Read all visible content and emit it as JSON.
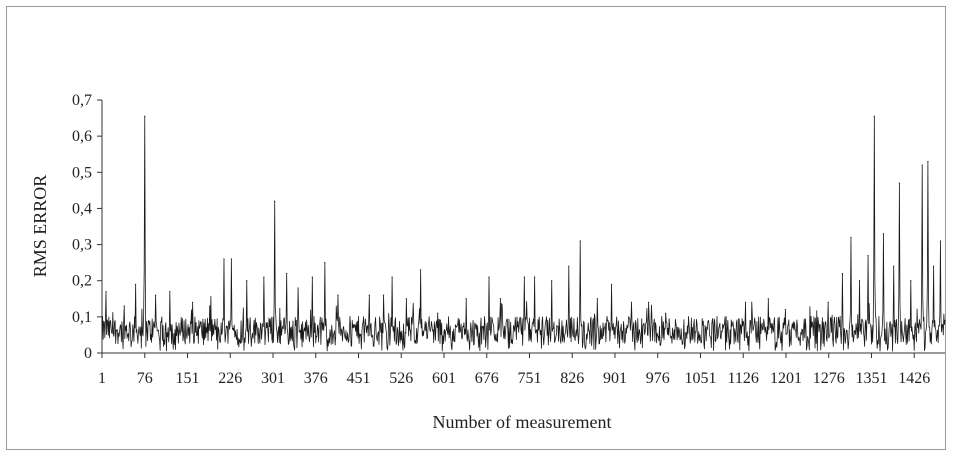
{
  "chart_data": {
    "type": "line",
    "title": "",
    "xlabel": "Number of measurement",
    "ylabel": "RMS ERROR",
    "xlim": [
      1,
      1480
    ],
    "ylim": [
      0,
      0.7
    ],
    "x_ticks": [
      1,
      76,
      151,
      226,
      301,
      376,
      451,
      526,
      601,
      676,
      751,
      826,
      901,
      976,
      1051,
      1126,
      1201,
      1276,
      1351,
      1426
    ],
    "y_ticks": [
      "0",
      "0,1",
      "0,2",
      "0,3",
      "0,4",
      "0,5",
      "0,6",
      "0,7"
    ],
    "y_tick_values": [
      0,
      0.1,
      0.2,
      0.3,
      0.4,
      0.5,
      0.6,
      0.7
    ],
    "grid": false,
    "series_color": "#1a1a1a",
    "baseline_level": 0.07,
    "peaks": [
      {
        "x": 8,
        "y": 0.17
      },
      {
        "x": 40,
        "y": 0.13
      },
      {
        "x": 60,
        "y": 0.19
      },
      {
        "x": 76,
        "y": 0.655
      },
      {
        "x": 95,
        "y": 0.16
      },
      {
        "x": 120,
        "y": 0.17
      },
      {
        "x": 160,
        "y": 0.14
      },
      {
        "x": 190,
        "y": 0.13
      },
      {
        "x": 215,
        "y": 0.26
      },
      {
        "x": 228,
        "y": 0.26
      },
      {
        "x": 255,
        "y": 0.2
      },
      {
        "x": 285,
        "y": 0.21
      },
      {
        "x": 304,
        "y": 0.42
      },
      {
        "x": 325,
        "y": 0.22
      },
      {
        "x": 345,
        "y": 0.18
      },
      {
        "x": 370,
        "y": 0.21
      },
      {
        "x": 392,
        "y": 0.25
      },
      {
        "x": 415,
        "y": 0.16
      },
      {
        "x": 470,
        "y": 0.16
      },
      {
        "x": 495,
        "y": 0.16
      },
      {
        "x": 510,
        "y": 0.21
      },
      {
        "x": 535,
        "y": 0.15
      },
      {
        "x": 560,
        "y": 0.23
      },
      {
        "x": 590,
        "y": 0.11
      },
      {
        "x": 640,
        "y": 0.15
      },
      {
        "x": 680,
        "y": 0.21
      },
      {
        "x": 700,
        "y": 0.15
      },
      {
        "x": 742,
        "y": 0.21
      },
      {
        "x": 760,
        "y": 0.21
      },
      {
        "x": 790,
        "y": 0.2
      },
      {
        "x": 820,
        "y": 0.24
      },
      {
        "x": 840,
        "y": 0.31
      },
      {
        "x": 870,
        "y": 0.15
      },
      {
        "x": 895,
        "y": 0.19
      },
      {
        "x": 930,
        "y": 0.14
      },
      {
        "x": 960,
        "y": 0.14
      },
      {
        "x": 990,
        "y": 0.11
      },
      {
        "x": 1030,
        "y": 0.1
      },
      {
        "x": 1080,
        "y": 0.1
      },
      {
        "x": 1130,
        "y": 0.14
      },
      {
        "x": 1170,
        "y": 0.15
      },
      {
        "x": 1200,
        "y": 0.12
      },
      {
        "x": 1245,
        "y": 0.1
      },
      {
        "x": 1275,
        "y": 0.14
      },
      {
        "x": 1300,
        "y": 0.22
      },
      {
        "x": 1315,
        "y": 0.32
      },
      {
        "x": 1330,
        "y": 0.2
      },
      {
        "x": 1345,
        "y": 0.27
      },
      {
        "x": 1356,
        "y": 0.655
      },
      {
        "x": 1372,
        "y": 0.33
      },
      {
        "x": 1390,
        "y": 0.24
      },
      {
        "x": 1400,
        "y": 0.47
      },
      {
        "x": 1420,
        "y": 0.2
      },
      {
        "x": 1440,
        "y": 0.52
      },
      {
        "x": 1450,
        "y": 0.53
      },
      {
        "x": 1460,
        "y": 0.24
      },
      {
        "x": 1472,
        "y": 0.31
      }
    ]
  }
}
